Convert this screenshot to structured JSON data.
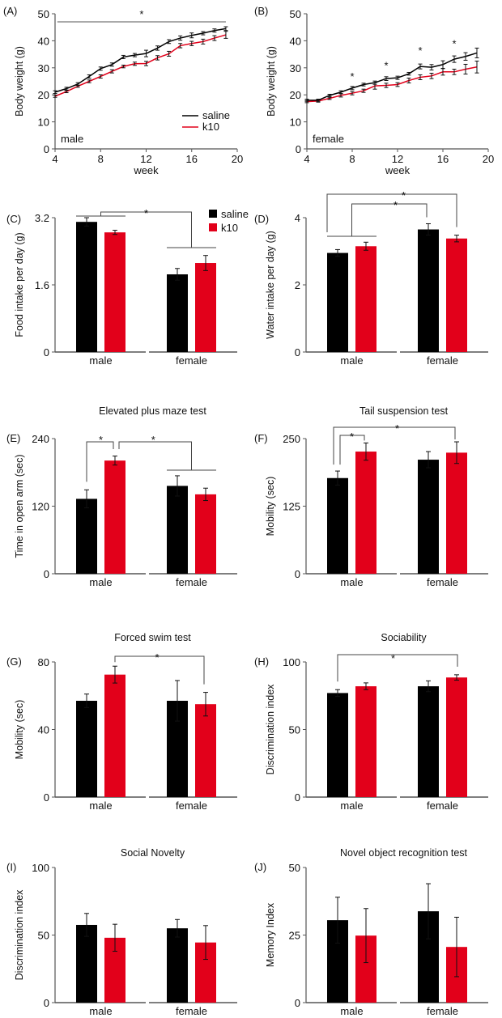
{
  "colors": {
    "saline": "#000000",
    "k10": "#e2001a",
    "axis": "#555555"
  },
  "chart_data": [
    {
      "id": "A",
      "panel_label": "(A)",
      "type": "line",
      "title": "",
      "xlabel": "week",
      "ylabel": "Body weight (g)",
      "xlim": [
        4,
        20
      ],
      "ylim": [
        0,
        50
      ],
      "xticks": [
        4,
        8,
        12,
        16,
        20
      ],
      "yticks": [
        0,
        10,
        20,
        30,
        40,
        50
      ],
      "annotation": "male",
      "legend": {
        "position": "bottom-right",
        "entries": [
          "saline",
          "k10"
        ]
      },
      "x": [
        4,
        5,
        6,
        7,
        8,
        9,
        10,
        11,
        12,
        13,
        14,
        15,
        16,
        17,
        18,
        19
      ],
      "series": [
        {
          "name": "saline",
          "values": [
            21,
            22.3,
            24,
            26.8,
            29.7,
            31.2,
            34,
            34.7,
            35.3,
            37.3,
            39.7,
            41,
            42,
            42.8,
            43.8,
            44.5
          ],
          "err": [
            0.5,
            0.5,
            0.5,
            0.6,
            0.6,
            0.6,
            0.6,
            0.6,
            1.2,
            0.8,
            0.7,
            0.8,
            0.9,
            0.6,
            0.6,
            0.7
          ]
        },
        {
          "name": "k10",
          "values": [
            19.5,
            21.2,
            23.2,
            25,
            26.8,
            28.7,
            30.5,
            31.5,
            31.6,
            33.7,
            35.2,
            38.2,
            39,
            39.7,
            41,
            42.2
          ],
          "err": [
            0.4,
            0.4,
            0.4,
            0.5,
            0.6,
            0.6,
            0.5,
            0.6,
            0.8,
            0.8,
            0.9,
            0.8,
            0.8,
            0.9,
            0.9,
            1.3
          ]
        }
      ],
      "significance": [
        {
          "type": "line",
          "from": 4.2,
          "to": 19,
          "y": 47,
          "label": "*"
        }
      ]
    },
    {
      "id": "B",
      "panel_label": "(B)",
      "type": "line",
      "title": "",
      "xlabel": "week",
      "ylabel": "Body weight (g)",
      "xlim": [
        4,
        20
      ],
      "ylim": [
        0,
        50
      ],
      "xticks": [
        4,
        8,
        12,
        16,
        20
      ],
      "yticks": [
        0,
        10,
        20,
        30,
        40,
        50
      ],
      "annotation": "female",
      "x": [
        4,
        5,
        6,
        7,
        8,
        9,
        10,
        11,
        12,
        13,
        14,
        15,
        16,
        17,
        18,
        19
      ],
      "series": [
        {
          "name": "saline",
          "values": [
            18,
            18,
            19.8,
            21,
            22.5,
            23.8,
            24.5,
            26,
            26.3,
            27.8,
            30.5,
            30.2,
            31.2,
            33.2,
            34.2,
            35.5
          ],
          "err": [
            0.4,
            0.4,
            0.4,
            0.5,
            0.6,
            0.5,
            0.6,
            0.7,
            0.6,
            0.5,
            0.9,
            1,
            1.4,
            1.2,
            1.4,
            1.8
          ]
        },
        {
          "name": "k10",
          "values": [
            17.5,
            17.7,
            18.7,
            19.8,
            20.6,
            21.5,
            23.3,
            23.5,
            23.8,
            25.3,
            26.5,
            27,
            28.5,
            28.5,
            29.5,
            30.3
          ],
          "err": [
            0.4,
            0.4,
            0.4,
            0.6,
            0.6,
            0.6,
            1.2,
            0.8,
            0.7,
            0.9,
            0.9,
            1,
            1.2,
            1,
            1.8,
            2.2
          ]
        }
      ],
      "significance": [
        {
          "type": "star",
          "x": 8,
          "y": 27,
          "label": "*"
        },
        {
          "type": "star",
          "x": 11,
          "y": 31,
          "label": "*"
        },
        {
          "type": "star",
          "x": 14,
          "y": 36.5,
          "label": "*"
        },
        {
          "type": "star",
          "x": 17,
          "y": 39,
          "label": "*"
        }
      ]
    },
    {
      "id": "C",
      "panel_label": "(C)",
      "type": "bar",
      "title": "",
      "xlabel": "",
      "ylabel": "Food intake per day (g)",
      "categories": [
        "male",
        "female"
      ],
      "ylim": [
        0,
        3.2
      ],
      "yticks": [
        "0",
        "1.6",
        "3.2"
      ],
      "ytick_values": [
        0,
        1.6,
        3.2
      ],
      "legend": {
        "position": "top-right",
        "entries": [
          "saline",
          "k10"
        ]
      },
      "series": [
        {
          "name": "saline",
          "values": [
            3.1,
            1.85
          ],
          "err": [
            0.1,
            0.14
          ]
        },
        {
          "name": "k10",
          "values": [
            2.85,
            2.12
          ],
          "err": [
            0.05,
            0.18
          ]
        }
      ],
      "significance": [
        {
          "label": "*",
          "desc": "male vs female",
          "bracket": "groups",
          "y": 3.5
        }
      ]
    },
    {
      "id": "D",
      "panel_label": "(D)",
      "type": "bar",
      "title": "",
      "xlabel": "",
      "ylabel": "Water intake per day (g)",
      "categories": [
        "male",
        "female"
      ],
      "ylim": [
        0,
        4
      ],
      "yticks": [
        "0",
        "2",
        "4"
      ],
      "ytick_values": [
        0,
        2,
        4
      ],
      "series": [
        {
          "name": "saline",
          "values": [
            2.95,
            3.65
          ],
          "err": [
            0.1,
            0.17
          ]
        },
        {
          "name": "k10",
          "values": [
            3.15,
            3.38
          ],
          "err": [
            0.12,
            0.1
          ]
        }
      ],
      "significance": [
        {
          "label": "*",
          "desc": "male saline vs female k10"
        },
        {
          "label": "*",
          "desc": "male vs female saline"
        }
      ]
    },
    {
      "id": "E",
      "panel_label": "(E)",
      "type": "bar",
      "title": "Elevated plus maze test",
      "xlabel": "",
      "ylabel": "Time in open arm (sec)",
      "categories": [
        "male",
        "female"
      ],
      "ylim": [
        0,
        240
      ],
      "yticks": [
        "0",
        "120",
        "240"
      ],
      "ytick_values": [
        0,
        120,
        240
      ],
      "series": [
        {
          "name": "saline",
          "values": [
            133,
            156
          ],
          "err": [
            16,
            18
          ]
        },
        {
          "name": "k10",
          "values": [
            201,
            141
          ],
          "err": [
            8,
            11
          ]
        }
      ],
      "significance": [
        {
          "label": "*",
          "desc": "male saline vs male k10"
        },
        {
          "label": "*",
          "desc": "male k10 vs female"
        }
      ]
    },
    {
      "id": "F",
      "panel_label": "(F)",
      "type": "bar",
      "title": "Tail suspension test",
      "xlabel": "",
      "ylabel": "Mobility (sec)",
      "categories": [
        "male",
        "female"
      ],
      "ylim": [
        0,
        250
      ],
      "yticks": [
        "0",
        "125",
        "250"
      ],
      "ytick_values": [
        0,
        125,
        250
      ],
      "series": [
        {
          "name": "saline",
          "values": [
            177,
            211
          ],
          "err": [
            13,
            15
          ]
        },
        {
          "name": "k10",
          "values": [
            226,
            224
          ],
          "err": [
            16,
            20
          ]
        }
      ],
      "significance": [
        {
          "label": "*",
          "desc": "male saline vs male k10"
        },
        {
          "label": "*",
          "desc": "male saline vs female k10"
        }
      ]
    },
    {
      "id": "G",
      "panel_label": "(G)",
      "type": "bar",
      "title": "Forced swim test",
      "xlabel": "",
      "ylabel": "Mobility (sec)",
      "categories": [
        "male",
        "female"
      ],
      "ylim": [
        0,
        80
      ],
      "yticks": [
        "0",
        "40",
        "80"
      ],
      "ytick_values": [
        0,
        40,
        80
      ],
      "series": [
        {
          "name": "saline",
          "values": [
            57,
            57
          ],
          "err": [
            4,
            12
          ]
        },
        {
          "name": "k10",
          "values": [
            72.5,
            55
          ],
          "err": [
            5,
            7
          ]
        }
      ],
      "significance": [
        {
          "label": "*",
          "desc": "male k10 vs female k10"
        }
      ]
    },
    {
      "id": "H",
      "panel_label": "(H)",
      "type": "bar",
      "title": "Sociability",
      "xlabel": "",
      "ylabel": "Discrimination index",
      "categories": [
        "male",
        "female"
      ],
      "ylim": [
        0,
        100
      ],
      "yticks": [
        "0",
        "50",
        "100"
      ],
      "ytick_values": [
        0,
        50,
        100
      ],
      "series": [
        {
          "name": "saline",
          "values": [
            77,
            82
          ],
          "err": [
            2.5,
            4
          ]
        },
        {
          "name": "k10",
          "values": [
            82,
            88.5
          ],
          "err": [
            2.5,
            2
          ]
        }
      ],
      "significance": [
        {
          "label": "*",
          "desc": "male saline vs female k10"
        }
      ]
    },
    {
      "id": "I",
      "panel_label": "(I)",
      "type": "bar",
      "title": "Social Novelty",
      "xlabel": "",
      "ylabel": "Discrimination index",
      "categories": [
        "male",
        "female"
      ],
      "ylim": [
        0,
        100
      ],
      "yticks": [
        "0",
        "50",
        "100"
      ],
      "ytick_values": [
        0,
        50,
        100
      ],
      "series": [
        {
          "name": "saline",
          "values": [
            57.5,
            55
          ],
          "err": [
            8.5,
            6.5
          ]
        },
        {
          "name": "k10",
          "values": [
            48,
            44.5
          ],
          "err": [
            10,
            12.5
          ]
        }
      ],
      "significance": []
    },
    {
      "id": "J",
      "panel_label": "(J)",
      "type": "bar",
      "title": "Novel object recognition test",
      "xlabel": "",
      "ylabel": "Memory Index",
      "categories": [
        "male",
        "female"
      ],
      "ylim": [
        0,
        50
      ],
      "yticks": [
        "0",
        "25",
        "50"
      ],
      "ytick_values": [
        0,
        25,
        50
      ],
      "series": [
        {
          "name": "saline",
          "values": [
            30.5,
            33.8
          ],
          "err": [
            8.5,
            10.2
          ]
        },
        {
          "name": "k10",
          "values": [
            24.8,
            20.6
          ],
          "err": [
            10,
            11
          ]
        }
      ],
      "significance": []
    }
  ]
}
